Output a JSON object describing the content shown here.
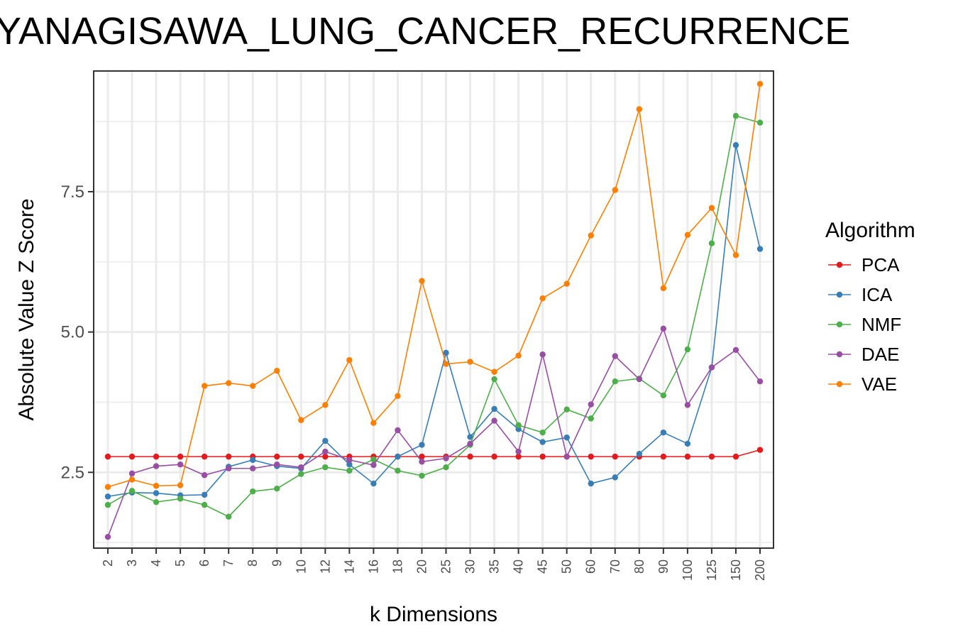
{
  "chart_data": {
    "type": "line",
    "title": "YANAGISAWA_LUNG_CANCER_RECURRENCE",
    "xlabel": "k Dimensions",
    "ylabel": "Absolute Value Z Score",
    "categories": [
      "2",
      "3",
      "4",
      "5",
      "6",
      "7",
      "8",
      "9",
      "10",
      "12",
      "14",
      "16",
      "18",
      "20",
      "25",
      "30",
      "35",
      "40",
      "45",
      "50",
      "60",
      "70",
      "80",
      "90",
      "100",
      "125",
      "150",
      "200"
    ],
    "yticks": [
      2.5,
      5.0,
      7.5
    ],
    "ytick_labels": [
      "2.5",
      "5.0",
      "7.5"
    ],
    "ylim": [
      1.15,
      9.65
    ],
    "grid": true,
    "legend": {
      "title": "Algorithm",
      "position": "right"
    },
    "series": [
      {
        "name": "PCA",
        "color": "#e41a1c",
        "values": [
          2.78,
          2.78,
          2.78,
          2.78,
          2.78,
          2.78,
          2.78,
          2.78,
          2.78,
          2.78,
          2.78,
          2.78,
          2.78,
          2.78,
          2.78,
          2.78,
          2.78,
          2.78,
          2.78,
          2.78,
          2.78,
          2.78,
          2.78,
          2.78,
          2.78,
          2.78,
          2.78,
          2.9
        ]
      },
      {
        "name": "ICA",
        "color": "#377eb8",
        "values": [
          2.07,
          2.14,
          2.13,
          2.09,
          2.1,
          2.6,
          2.72,
          2.61,
          2.57,
          3.06,
          2.64,
          2.3,
          2.78,
          2.99,
          4.63,
          3.13,
          3.63,
          3.27,
          3.04,
          3.12,
          2.3,
          2.41,
          2.83,
          3.21,
          3.01,
          4.37,
          8.33,
          6.48
        ]
      },
      {
        "name": "NMF",
        "color": "#4daf4a",
        "values": [
          1.92,
          2.17,
          1.97,
          2.03,
          1.92,
          1.71,
          2.16,
          2.21,
          2.47,
          2.59,
          2.53,
          2.73,
          2.53,
          2.44,
          2.59,
          2.99,
          4.16,
          3.34,
          3.21,
          3.62,
          3.46,
          4.12,
          4.17,
          3.87,
          4.69,
          6.58,
          8.85,
          8.73
        ]
      },
      {
        "name": "DAE",
        "color": "#984ea3",
        "values": [
          1.35,
          2.48,
          2.61,
          2.64,
          2.45,
          2.57,
          2.57,
          2.64,
          2.59,
          2.87,
          2.72,
          2.63,
          3.25,
          2.69,
          2.75,
          3.01,
          3.42,
          2.87,
          4.6,
          2.78,
          3.71,
          4.57,
          4.16,
          5.06,
          3.7,
          4.37,
          4.68,
          4.12
        ]
      },
      {
        "name": "VAE",
        "color": "#ff7f00",
        "values": [
          2.24,
          2.37,
          2.26,
          2.27,
          4.04,
          4.09,
          4.04,
          4.31,
          3.43,
          3.7,
          4.5,
          3.38,
          3.86,
          5.91,
          4.43,
          4.47,
          4.29,
          4.58,
          5.6,
          5.86,
          6.72,
          7.53,
          8.97,
          5.78,
          6.73,
          7.21,
          6.37,
          9.42
        ]
      }
    ]
  }
}
